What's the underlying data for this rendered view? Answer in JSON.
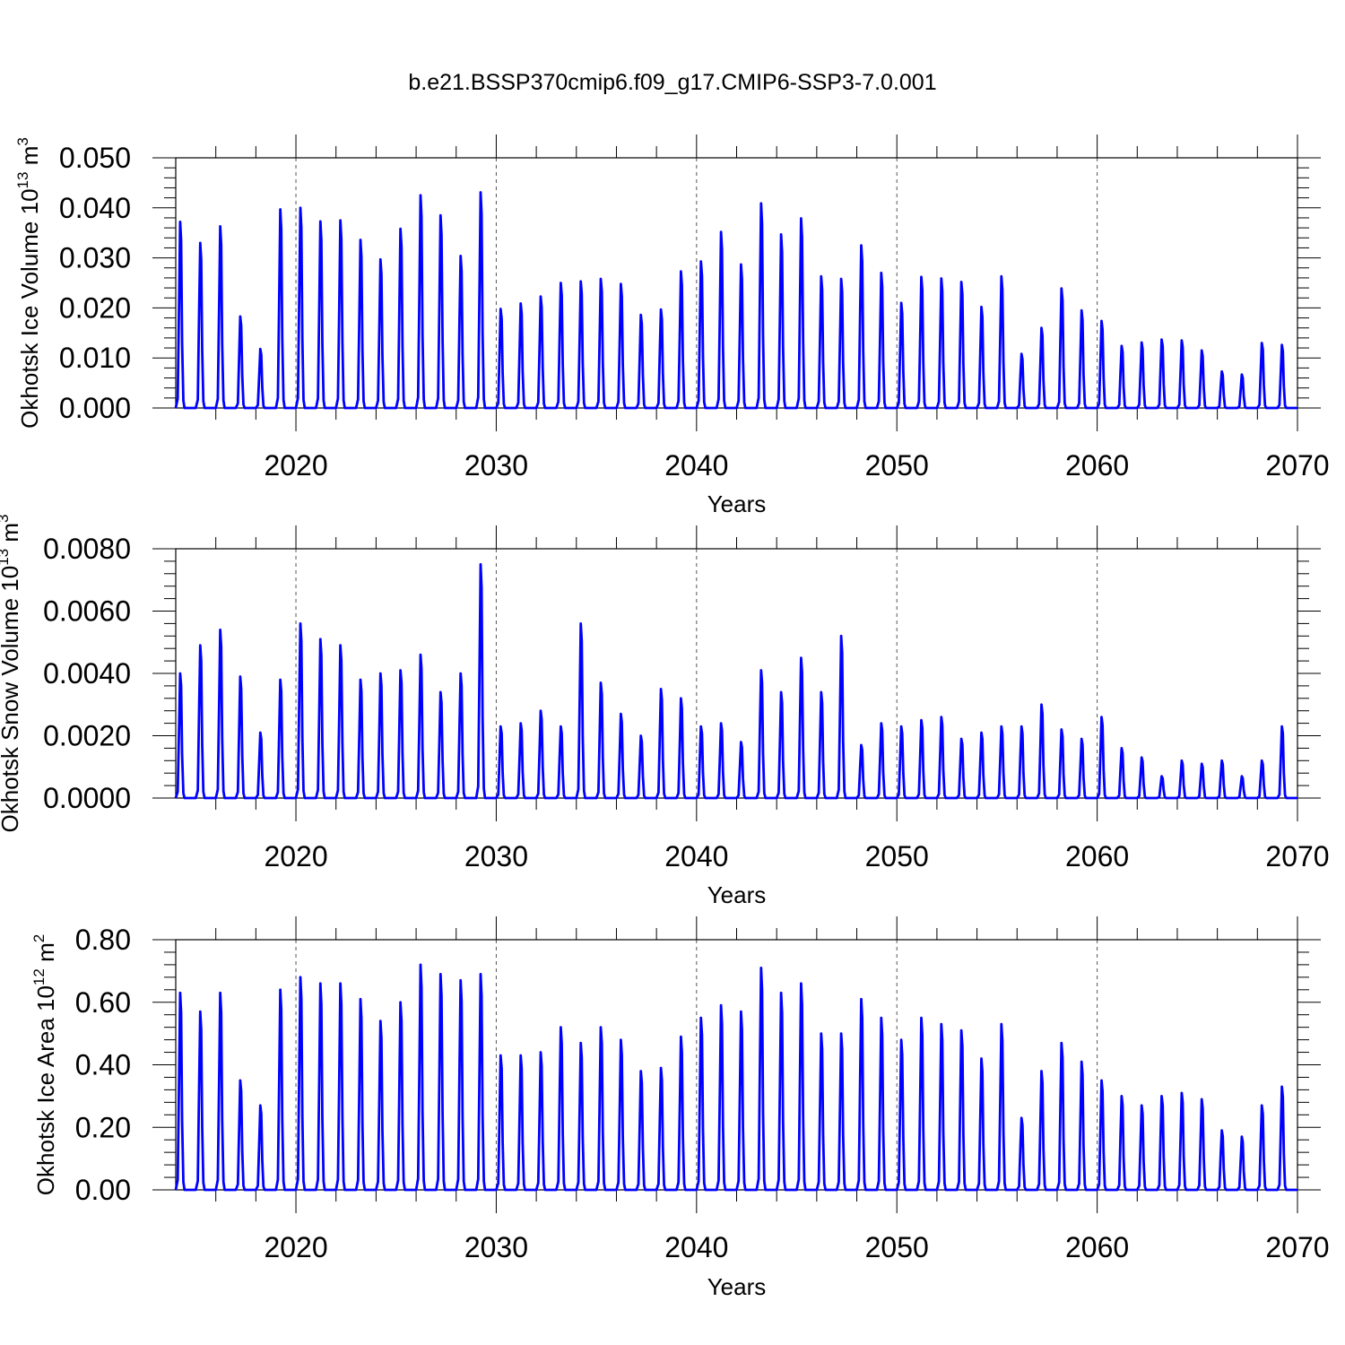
{
  "title": "b.e21.BSSP370cmip6.f09_g17.CMIP6-SSP3-7.0.001",
  "chart_data": [
    {
      "type": "line",
      "ylabel": "Okhotsk Ice Volume 10",
      "ylabel_exp": "13",
      "ylabel_unit": " m",
      "ylabel_unit_exp": "3",
      "xlabel": "Years",
      "xlim": [
        2014,
        2070
      ],
      "ylim": [
        0,
        0.05
      ],
      "yticks": [
        "0.000",
        "0.010",
        "0.020",
        "0.030",
        "0.040",
        "0.050"
      ],
      "xticks": [
        "2020",
        "2030",
        "2040",
        "2050",
        "2060",
        "2070"
      ],
      "grid": "dashed vertical at labeled years",
      "series": [
        {
          "color": "#0000ff",
          "x": [
            2014,
            2015,
            2016,
            2017,
            2018,
            2019,
            2020,
            2021,
            2022,
            2023,
            2024,
            2025,
            2026,
            2027,
            2028,
            2029,
            2030,
            2031,
            2032,
            2033,
            2034,
            2035,
            2036,
            2037,
            2038,
            2039,
            2040,
            2041,
            2042,
            2043,
            2044,
            2045,
            2046,
            2047,
            2048,
            2049,
            2050,
            2051,
            2052,
            2053,
            2054,
            2055,
            2056,
            2057,
            2058,
            2059,
            2060,
            2061,
            2062,
            2063,
            2064,
            2065,
            2066,
            2067,
            2068,
            2069
          ],
          "peaks": [
            0.0372,
            0.033,
            0.0363,
            0.0183,
            0.0118,
            0.0397,
            0.04,
            0.0373,
            0.0375,
            0.0336,
            0.0297,
            0.0358,
            0.0425,
            0.0385,
            0.0304,
            0.0431,
            0.0198,
            0.0209,
            0.0223,
            0.025,
            0.0253,
            0.0258,
            0.0248,
            0.0186,
            0.0197,
            0.0273,
            0.0293,
            0.0352,
            0.0287,
            0.0409,
            0.0347,
            0.0379,
            0.0263,
            0.0258,
            0.0325,
            0.027,
            0.021,
            0.0262,
            0.0259,
            0.0252,
            0.0202,
            0.0263,
            0.0108,
            0.016,
            0.0239,
            0.0195,
            0.0174,
            0.0124,
            0.0131,
            0.0137,
            0.0135,
            0.0115,
            0.0073,
            0.0067,
            0.013,
            0.0126
          ]
        }
      ]
    },
    {
      "type": "line",
      "ylabel": "Okhotsk Snow Volume 10",
      "ylabel_exp": "13",
      "ylabel_unit": " m",
      "ylabel_unit_exp": "3",
      "xlabel": "Years",
      "xlim": [
        2014,
        2070
      ],
      "ylim": [
        0,
        0.008
      ],
      "yticks": [
        "0.0000",
        "0.0020",
        "0.0040",
        "0.0060",
        "0.0080"
      ],
      "xticks": [
        "2020",
        "2030",
        "2040",
        "2050",
        "2060",
        "2070"
      ],
      "grid": "dashed vertical at labeled years",
      "series": [
        {
          "color": "#0000ff",
          "x": [
            2014,
            2015,
            2016,
            2017,
            2018,
            2019,
            2020,
            2021,
            2022,
            2023,
            2024,
            2025,
            2026,
            2027,
            2028,
            2029,
            2030,
            2031,
            2032,
            2033,
            2034,
            2035,
            2036,
            2037,
            2038,
            2039,
            2040,
            2041,
            2042,
            2043,
            2044,
            2045,
            2046,
            2047,
            2048,
            2049,
            2050,
            2051,
            2052,
            2053,
            2054,
            2055,
            2056,
            2057,
            2058,
            2059,
            2060,
            2061,
            2062,
            2063,
            2064,
            2065,
            2066,
            2067,
            2068,
            2069
          ],
          "peaks": [
            0.004,
            0.0049,
            0.0054,
            0.0039,
            0.0021,
            0.0038,
            0.0056,
            0.0051,
            0.0049,
            0.0038,
            0.004,
            0.0041,
            0.0046,
            0.0034,
            0.004,
            0.0075,
            0.0023,
            0.0024,
            0.0028,
            0.0023,
            0.0056,
            0.0037,
            0.0027,
            0.002,
            0.0035,
            0.0032,
            0.0023,
            0.0024,
            0.0018,
            0.0041,
            0.0034,
            0.0045,
            0.0034,
            0.0052,
            0.0017,
            0.0024,
            0.0023,
            0.0025,
            0.0026,
            0.0019,
            0.0021,
            0.0023,
            0.0023,
            0.003,
            0.0022,
            0.0019,
            0.0026,
            0.0016,
            0.0013,
            0.0007,
            0.0012,
            0.0011,
            0.0012,
            0.0007,
            0.0012,
            0.0023
          ]
        }
      ]
    },
    {
      "type": "line",
      "ylabel": "Okhotsk Ice Area 10",
      "ylabel_exp": "12",
      "ylabel_unit": " m",
      "ylabel_unit_exp": "2",
      "xlabel": "Years",
      "xlim": [
        2014,
        2070
      ],
      "ylim": [
        0,
        0.8
      ],
      "yticks": [
        "0.00",
        "0.20",
        "0.40",
        "0.60",
        "0.80"
      ],
      "xticks": [
        "2020",
        "2030",
        "2040",
        "2050",
        "2060",
        "2070"
      ],
      "grid": "dashed vertical at labeled years",
      "series": [
        {
          "color": "#0000ff",
          "x": [
            2014,
            2015,
            2016,
            2017,
            2018,
            2019,
            2020,
            2021,
            2022,
            2023,
            2024,
            2025,
            2026,
            2027,
            2028,
            2029,
            2030,
            2031,
            2032,
            2033,
            2034,
            2035,
            2036,
            2037,
            2038,
            2039,
            2040,
            2041,
            2042,
            2043,
            2044,
            2045,
            2046,
            2047,
            2048,
            2049,
            2050,
            2051,
            2052,
            2053,
            2054,
            2055,
            2056,
            2057,
            2058,
            2059,
            2060,
            2061,
            2062,
            2063,
            2064,
            2065,
            2066,
            2067,
            2068,
            2069
          ],
          "peaks": [
            0.63,
            0.57,
            0.63,
            0.35,
            0.27,
            0.64,
            0.68,
            0.66,
            0.66,
            0.61,
            0.54,
            0.6,
            0.72,
            0.69,
            0.67,
            0.69,
            0.43,
            0.43,
            0.44,
            0.52,
            0.47,
            0.52,
            0.48,
            0.38,
            0.39,
            0.49,
            0.55,
            0.59,
            0.57,
            0.71,
            0.63,
            0.66,
            0.5,
            0.5,
            0.61,
            0.55,
            0.48,
            0.55,
            0.53,
            0.51,
            0.42,
            0.53,
            0.23,
            0.38,
            0.47,
            0.41,
            0.35,
            0.3,
            0.27,
            0.3,
            0.31,
            0.29,
            0.19,
            0.17,
            0.27,
            0.33
          ]
        }
      ]
    }
  ]
}
